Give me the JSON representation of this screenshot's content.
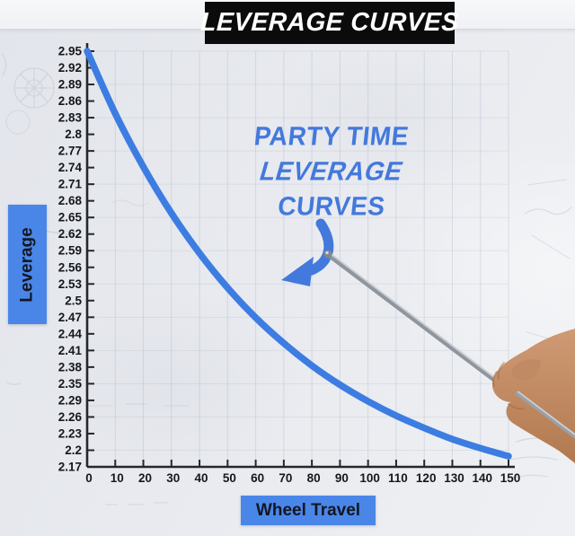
{
  "title": {
    "text": "LEVERAGE CURVES"
  },
  "annotation": {
    "line1": "PARTY TIME",
    "line2": "LEVERAGE",
    "line3": "CURVES"
  },
  "axes": {
    "y_label": "Leverage",
    "x_label": "Wheel Travel"
  },
  "chart_data": {
    "type": "line",
    "title": "LEVERAGE CURVES",
    "xlabel": "Wheel Travel",
    "ylabel": "Leverage",
    "x": [
      0,
      10,
      20,
      30,
      40,
      50,
      60,
      70,
      80,
      90,
      100,
      110,
      120,
      130,
      140,
      150
    ],
    "series": [
      {
        "name": "party-time-leverage-curve",
        "values": [
          2.95,
          2.833,
          2.733,
          2.646,
          2.571,
          2.506,
          2.45,
          2.402,
          2.36,
          2.324,
          2.293,
          2.266,
          2.243,
          2.222,
          2.205,
          2.19
        ]
      }
    ],
    "xlim": [
      0,
      150
    ],
    "ylim": [
      2.17,
      2.95
    ],
    "x_tick_labels": [
      "0",
      "10",
      "20",
      "30",
      "40",
      "50",
      "60",
      "70",
      "80",
      "90",
      "100",
      "110",
      "120",
      "130",
      "140",
      "150"
    ],
    "y_tick_labels": [
      "2.95",
      "2.92",
      "2.89",
      "2.86",
      "2.83",
      "2.8",
      "2.77",
      "2.74",
      "2.71",
      "2.68",
      "2.65",
      "2.62",
      "2.59",
      "2.56",
      "2.53",
      "2.5",
      "2.47",
      "2.44",
      "2.41",
      "2.38",
      "2.35",
      "2.29",
      "2.26",
      "2.23",
      "2.2",
      "2.17"
    ],
    "grid": true,
    "legend": "none"
  },
  "colors": {
    "accent": "#4a86e8",
    "curve": "#3d7de2",
    "annotation": "#4379dd",
    "titleBg": "#0b0b0b",
    "titleFg": "#ffffff",
    "axis": "#26272b",
    "ink": "#17181c"
  }
}
